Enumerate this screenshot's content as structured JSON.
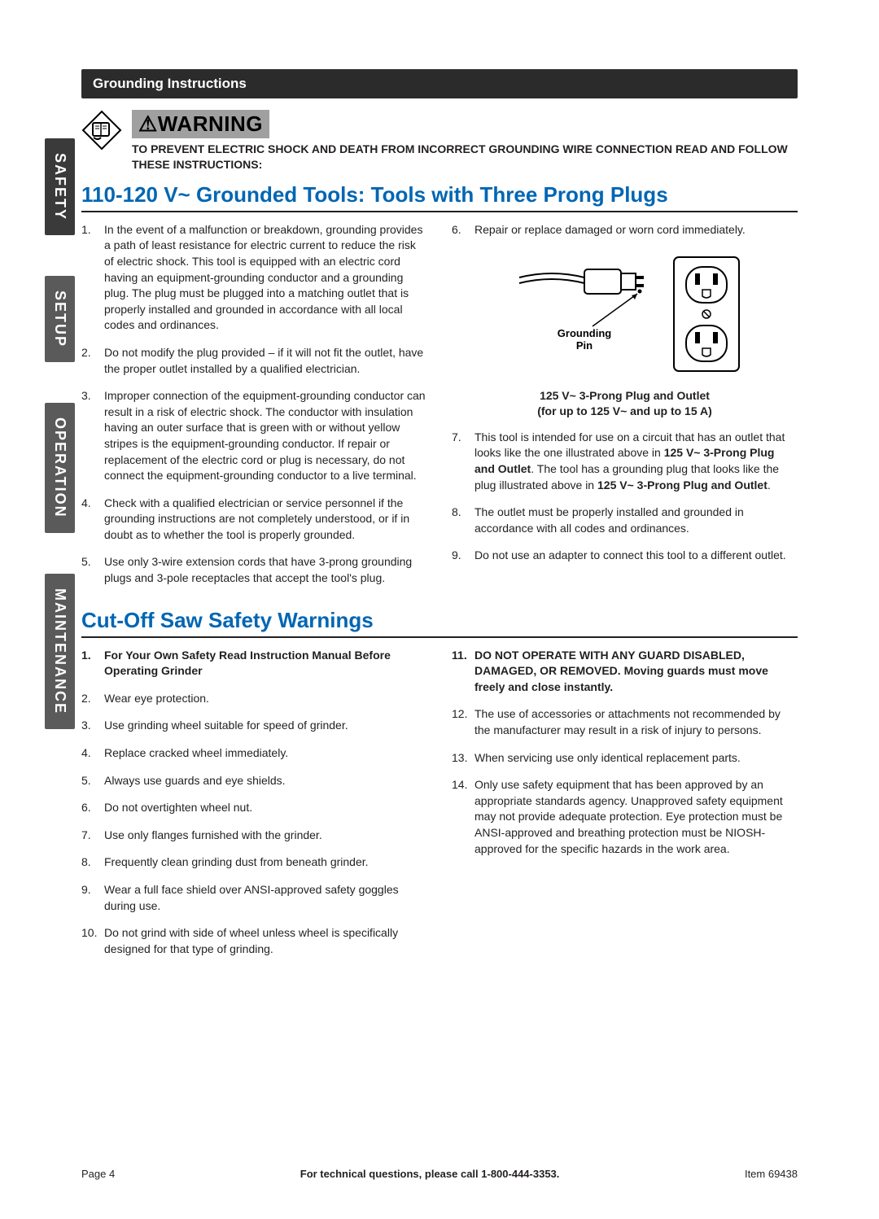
{
  "tabs": [
    "SAFETY",
    "SETUP",
    "OPERATION",
    "MAINTENANCE"
  ],
  "header_bar": "Grounding Instructions",
  "warning": {
    "label": "⚠WARNING",
    "text": "TO PREVENT ELECTRIC SHOCK AND DEATH FROM INCORRECT GROUNDING WIRE CONNECTION READ AND FOLLOW THESE INSTRUCTIONS:"
  },
  "section1_title": "110-120 V~ Grounded Tools: Tools with Three Prong Plugs",
  "grounding_left": [
    "In the event of a malfunction or breakdown, grounding provides a path of least resistance for electric current to reduce the risk of electric shock. This tool is equipped with an electric cord having an equipment-grounding conductor and a grounding plug. The plug must be plugged into a matching outlet that is properly installed and grounded in accordance with all local codes and ordinances.",
    "Do not modify the plug provided – if it will not fit the outlet, have the proper outlet installed by a qualified electrician.",
    "Improper connection of the equipment-grounding conductor can result in a risk of electric shock. The conductor with insulation having an outer surface that is green with or without yellow stripes is the equipment-grounding conductor. If repair or replacement of the electric cord or plug is necessary, do not connect the equipment-grounding conductor to a live terminal.",
    "Check with a qualified electrician or service personnel if the grounding instructions are not completely understood, or if in doubt as to whether the tool is properly grounded.",
    "Use only 3-wire extension cords that have 3-prong grounding plugs and 3-pole receptacles that accept the tool's plug."
  ],
  "grounding_right_first": "Repair or replace damaged or worn cord immediately.",
  "diagram": {
    "pin_label": "Grounding Pin",
    "caption_line1": "125 V~ 3-Prong Plug and Outlet",
    "caption_line2": "(for up to 125 V~ and up to 15 A)"
  },
  "grounding_right_rest": [
    {
      "html": "This tool is intended for use on a circuit that has an outlet that looks like the one illustrated above in <b>125 V~ 3-Prong Plug and Outlet</b>. The tool has a grounding plug that looks like the plug illustrated above in <b>125 V~ 3-Prong Plug and Outlet</b>."
    },
    {
      "text": "The outlet must be properly installed and grounded in accordance with all codes and ordinances."
    },
    {
      "text": "Do not use an adapter to connect this tool to a different outlet."
    }
  ],
  "section2_title": "Cut-Off Saw Safety Warnings",
  "cutoff_left": [
    {
      "bold": true,
      "text": "For Your Own Safety Read Instruction Manual Before Operating Grinder"
    },
    {
      "text": "Wear eye protection."
    },
    {
      "text": "Use grinding wheel suitable for speed of grinder."
    },
    {
      "text": "Replace cracked wheel immediately."
    },
    {
      "text": "Always use guards and eye shields."
    },
    {
      "text": "Do not overtighten wheel nut."
    },
    {
      "text": "Use only flanges furnished with the grinder."
    },
    {
      "text": "Frequently clean grinding dust from beneath grinder."
    },
    {
      "text": "Wear a full face shield over ANSI-approved safety goggles during use."
    },
    {
      "text": "Do not grind with side of wheel unless wheel is specifically designed for that type of grinding."
    }
  ],
  "cutoff_right": [
    {
      "bold": true,
      "text": "DO NOT OPERATE WITH ANY GUARD DISABLED, DAMAGED, OR REMOVED. Moving guards must move freely and close instantly."
    },
    {
      "text": "The use of accessories or attachments not recommended by the manufacturer may result in a risk of injury to persons."
    },
    {
      "text": "When servicing use only identical replacement parts."
    },
    {
      "text": "Only use safety equipment that has been approved by an appropriate standards agency. Unapproved safety equipment may not provide adequate protection. Eye protection must be ANSI-approved and breathing protection must be NIOSH-approved for the specific hazards in the work area."
    }
  ],
  "footer": {
    "left": "Page 4",
    "center": "For technical questions, please call 1-800-444-3353.",
    "right": "Item 69438"
  }
}
